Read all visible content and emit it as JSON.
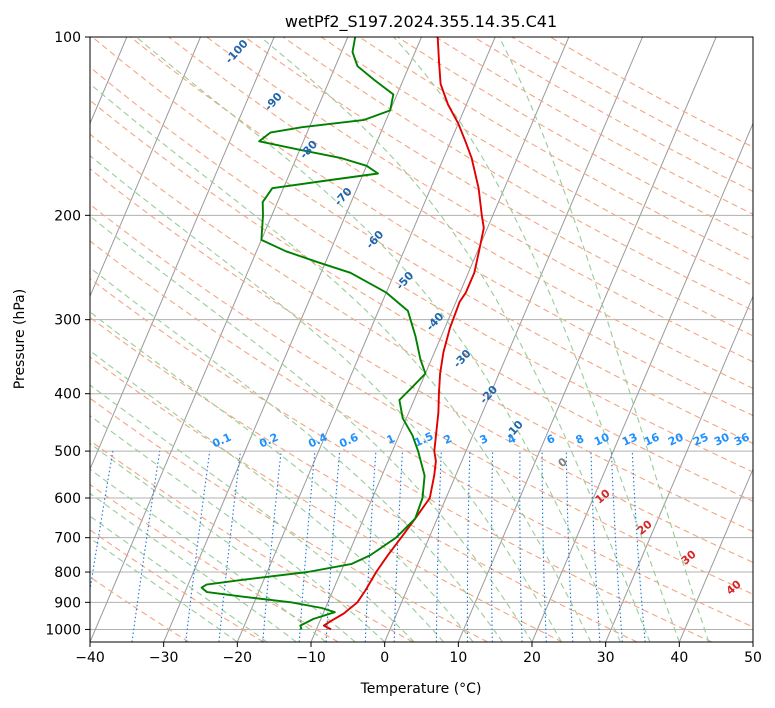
{
  "chart_data": {
    "type": "line",
    "diagram": "skew-T log-P",
    "title": "wetPf2_S197.2024.355.14.35.C41",
    "xlabel": "Temperature (°C)",
    "ylabel": "Pressure (hPa)",
    "xlim": [
      -40,
      50
    ],
    "ylim": [
      1050,
      100
    ],
    "y_scale": "log",
    "x_ticks": [
      "−40",
      "−30",
      "−20",
      "−10",
      "0",
      "10",
      "20",
      "30",
      "40",
      "50"
    ],
    "y_ticks": [
      "100",
      "200",
      "300",
      "400",
      "500",
      "600",
      "700",
      "800",
      "900",
      "1000"
    ],
    "grid": true,
    "series": [
      {
        "role": "temperature",
        "color": "#e00000",
        "points": [
          [
            1000,
            -8.0
          ],
          [
            985,
            -9.2
          ],
          [
            970,
            -8.6
          ],
          [
            940,
            -7.2
          ],
          [
            900,
            -6.0
          ],
          [
            860,
            -5.6
          ],
          [
            800,
            -5.2
          ],
          [
            750,
            -4.6
          ],
          [
            700,
            -3.8
          ],
          [
            650,
            -3.0
          ],
          [
            600,
            -2.2
          ],
          [
            550,
            -2.9
          ],
          [
            520,
            -3.5
          ],
          [
            500,
            -4.3
          ],
          [
            470,
            -5.0
          ],
          [
            430,
            -6.0
          ],
          [
            400,
            -7.0
          ],
          [
            370,
            -8.0
          ],
          [
            340,
            -8.8
          ],
          [
            310,
            -9.3
          ],
          [
            280,
            -9.5
          ],
          [
            270,
            -9.2
          ],
          [
            250,
            -9.2
          ],
          [
            230,
            -9.8
          ],
          [
            210,
            -10.5
          ],
          [
            200,
            -11.5
          ],
          [
            180,
            -13.5
          ],
          [
            160,
            -16.2
          ],
          [
            150,
            -18.0
          ],
          [
            140,
            -20.0
          ],
          [
            130,
            -22.5
          ],
          [
            120,
            -24.7
          ],
          [
            110,
            -26.2
          ],
          [
            100,
            -27.8
          ]
        ]
      },
      {
        "role": "dewpoint",
        "color": "#008000",
        "points": [
          [
            1000,
            -12.0
          ],
          [
            985,
            -12.4
          ],
          [
            960,
            -11.0
          ],
          [
            935,
            -8.5
          ],
          [
            920,
            -10.5
          ],
          [
            900,
            -15.0
          ],
          [
            880,
            -22.0
          ],
          [
            865,
            -27.0
          ],
          [
            850,
            -28.0
          ],
          [
            840,
            -27.5
          ],
          [
            825,
            -23.0
          ],
          [
            800,
            -14.5
          ],
          [
            775,
            -9.0
          ],
          [
            750,
            -7.0
          ],
          [
            700,
            -4.5
          ],
          [
            650,
            -3.0
          ],
          [
            600,
            -3.2
          ],
          [
            550,
            -4.2
          ],
          [
            500,
            -6.5
          ],
          [
            470,
            -8.2
          ],
          [
            440,
            -10.5
          ],
          [
            410,
            -12.0
          ],
          [
            390,
            -11.0
          ],
          [
            370,
            -10.0
          ],
          [
            350,
            -11.5
          ],
          [
            320,
            -13.5
          ],
          [
            290,
            -16.0
          ],
          [
            270,
            -20.0
          ],
          [
            250,
            -26.0
          ],
          [
            240,
            -31.0
          ],
          [
            230,
            -36.0
          ],
          [
            220,
            -40.0
          ],
          [
            200,
            -41.2
          ],
          [
            190,
            -42.0
          ],
          [
            180,
            -41.5
          ],
          [
            175,
            -35.0
          ],
          [
            170,
            -28.0
          ],
          [
            165,
            -30.0
          ],
          [
            160,
            -34.0
          ],
          [
            155,
            -40.0
          ],
          [
            150,
            -46.0
          ],
          [
            145,
            -45.0
          ],
          [
            142,
            -41.0
          ],
          [
            138,
            -33.0
          ],
          [
            133,
            -30.0
          ],
          [
            125,
            -30.5
          ],
          [
            118,
            -34.0
          ],
          [
            112,
            -37.0
          ],
          [
            106,
            -38.5
          ],
          [
            100,
            -39.0
          ]
        ]
      }
    ],
    "dry_adiabat_labels": [
      "-100",
      "-90",
      "-80",
      "-70",
      "-60",
      "-50",
      "-40",
      "-30",
      "-20",
      "-10"
    ],
    "mixing_ratio_labels": [
      "0.1",
      "0.2",
      "0.4",
      "0.6",
      "1",
      "1.5",
      "2",
      "3",
      "4",
      "6",
      "8",
      "10",
      "13",
      "16",
      "20",
      "25",
      "30",
      "36"
    ],
    "moist_adiabat_labels": [
      "0",
      "10",
      "20",
      "30",
      "40"
    ],
    "colors": {
      "temperature": "#e00000",
      "dewpoint": "#008000",
      "dry_adiabat": "#f4a582",
      "moist_adiabat": "#99cc99",
      "mixing_ratio": "#1f77d4",
      "isotherm": "#9a9a9a",
      "isobar": "#b0b0b0",
      "dry_label": "#2166ac",
      "mix_label": "#1e90ff",
      "moist_label": "#d62728",
      "zero_label": "#808080"
    }
  }
}
